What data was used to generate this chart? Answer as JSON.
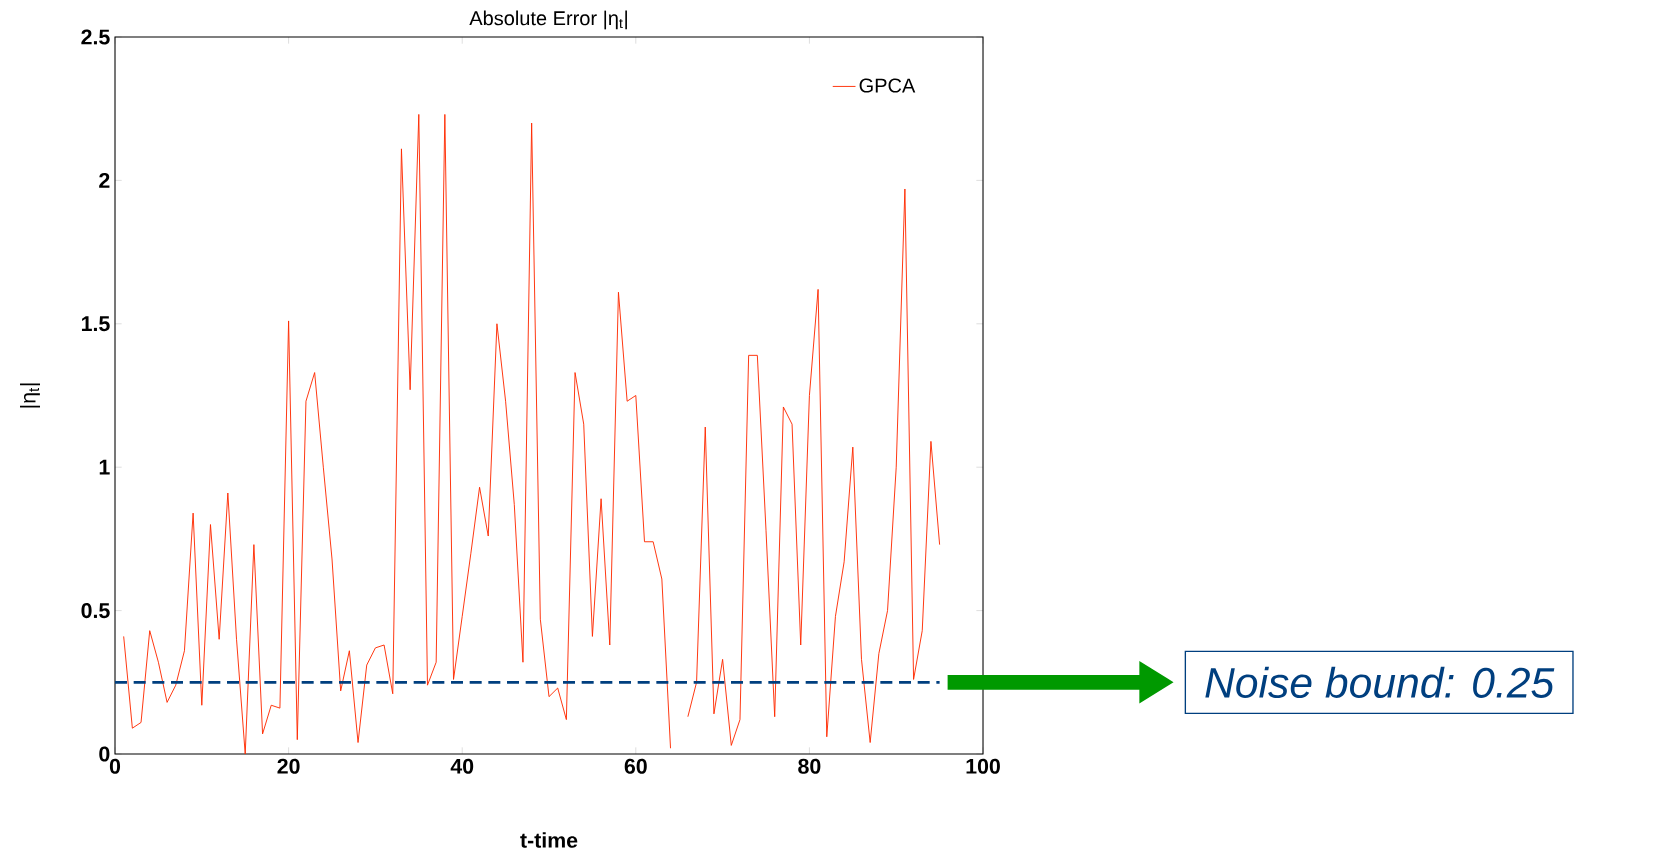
{
  "chart_data": {
    "type": "line",
    "title": "Absolute Error |η$_{t}$|",
    "xlabel": "t-time",
    "ylabel": "|η$_{t}$|",
    "x": [
      1,
      2,
      3,
      4,
      5,
      6,
      7,
      8,
      9,
      10,
      11,
      12,
      13,
      14,
      15,
      16,
      17,
      18,
      19,
      20,
      21,
      22,
      23,
      24,
      25,
      26,
      27,
      28,
      29,
      30,
      31,
      32,
      33,
      34,
      35,
      36,
      37,
      38,
      39,
      40,
      41,
      42,
      43,
      44,
      45,
      46,
      47,
      48,
      49,
      50,
      51,
      52,
      53,
      54,
      55,
      56,
      57,
      58,
      59,
      60,
      61,
      62,
      63,
      64,
      65,
      66,
      67,
      68,
      69,
      70,
      71,
      72,
      73,
      74,
      75,
      76,
      77,
      78,
      79,
      80,
      81,
      82,
      83,
      84,
      85,
      86,
      87,
      88,
      89,
      90,
      91,
      92,
      93,
      94,
      95
    ],
    "series": [
      {
        "name": "GPCA",
        "color": "#ff2a00",
        "values": [
          0.41,
          0.09,
          0.11,
          0.43,
          0.32,
          0.18,
          0.24,
          0.36,
          0.84,
          0.17,
          0.8,
          0.4,
          0.91,
          0.4,
          0.0,
          0.73,
          0.07,
          0.17,
          0.16,
          1.51,
          0.05,
          1.23,
          1.33,
          1.0,
          0.68,
          0.22,
          0.36,
          0.04,
          0.31,
          0.37,
          0.38,
          0.21,
          2.11,
          1.27,
          2.23,
          0.24,
          0.32,
          2.23,
          0.26,
          0.48,
          0.7,
          0.93,
          0.76,
          1.5,
          1.23,
          0.87,
          0.32,
          2.2,
          0.47,
          0.2,
          0.23,
          0.12,
          1.33,
          1.15,
          0.41,
          0.89,
          0.38,
          1.61,
          1.23,
          1.25,
          0.74,
          0.74,
          0.61,
          0.02,
          null,
          0.13,
          0.25,
          1.14,
          0.14,
          0.33,
          0.03,
          0.12,
          1.39,
          1.39,
          0.78,
          0.13,
          1.21,
          1.15,
          0.38,
          1.25,
          1.62,
          0.06,
          0.48,
          0.67,
          1.07,
          0.33,
          0.04,
          0.35,
          0.5,
          1.0,
          1.97,
          0.26,
          0.43,
          1.09,
          0.73
        ]
      }
    ],
    "xlim": [
      0,
      100
    ],
    "xticks": [
      0,
      20,
      40,
      60,
      80,
      100
    ],
    "ylim": [
      0,
      2.5
    ],
    "yticks": [
      0,
      0.5,
      1,
      1.5,
      2,
      2.5
    ],
    "ref_lines": [
      {
        "axis": "y",
        "value": 0.25,
        "label": "Noise bound: 0.25",
        "color": "#003f7f",
        "line_style": "dashed"
      }
    ],
    "legend": "top right",
    "grid": false
  }
}
